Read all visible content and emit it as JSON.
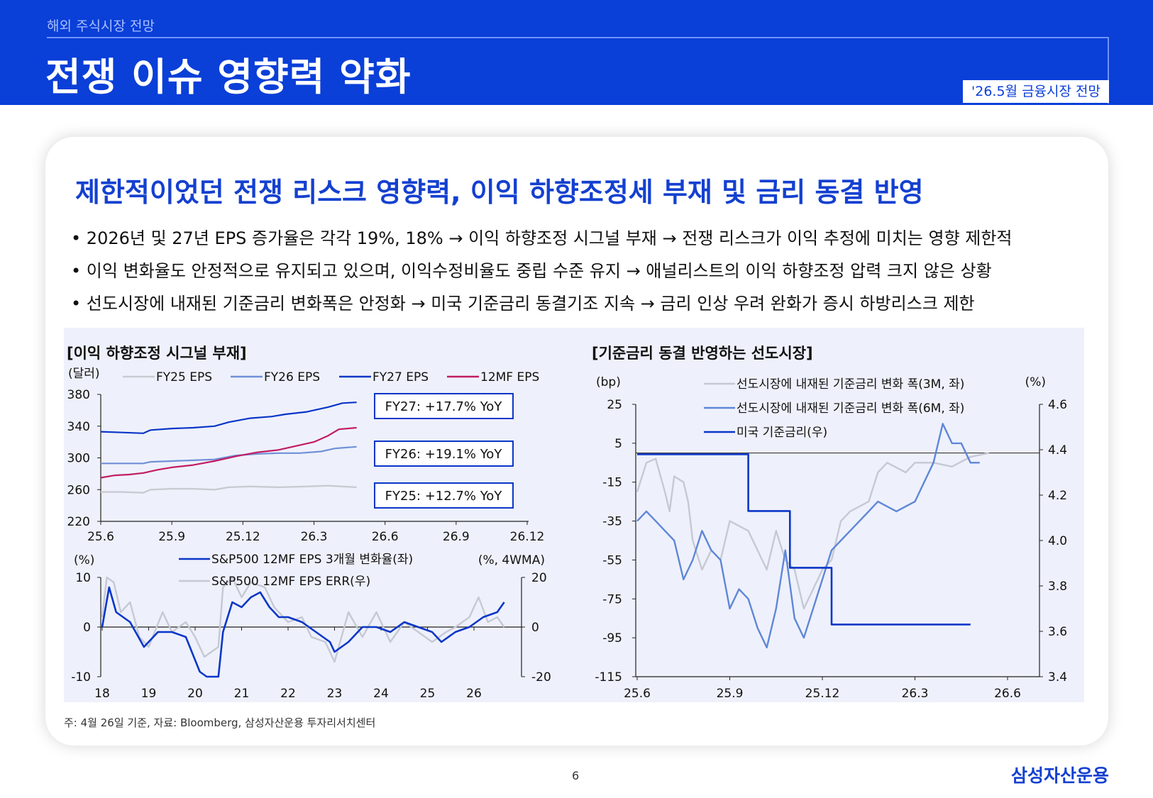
{
  "header": {
    "section": "해외 주식시장 전망",
    "title": "전쟁 이슈 영향력 약화",
    "badge": "'26.5월 금융시장 전망"
  },
  "card": {
    "title": "제한적이었던 전쟁 리스크 영향력, 이익 하향조정세 부재 및 금리 동결 반영",
    "bullets": [
      "2026년 및 27년 EPS 증가율은 각각 19%, 18% → 이익 하향조정 시그널 부재 → 전쟁 리스크가 이익 추정에 미치는 영향 제한적",
      "이익 변화율도 안정적으로 유지되고 있으며, 이익수정비율도 중립 수준 유지 → 애널리스트의 이익 하향조정 압력 크지 않은 상황",
      "선도시장에 내재된 기준금리 변화폭은 안정화 → 미국 기준금리 동결기조 지속 → 금리 인상 우려 완화가 증시 하방리스크 제한"
    ]
  },
  "colors": {
    "header_bg": "#0a3fd8",
    "accent": "#1440d0",
    "panel_bg": "#eef1fb",
    "fy25": "#c9cbd3",
    "fy26": "#6f90d8",
    "fy27": "#0a36c8",
    "mf12": "#c21c63",
    "err": "#c6c9d3",
    "chg3m": "#c6c9d3",
    "chg6m": "#5f86d8",
    "fed": "#0a36c8"
  },
  "chart_data": [
    {
      "type": "line",
      "title": "[이익 하향조정 시그널 부재]",
      "ylabel": "(달러)",
      "ylim": [
        220,
        380
      ],
      "yticks": [
        380,
        340,
        300,
        260,
        220
      ],
      "x_categories": [
        "25.6",
        "25.9",
        "25.12",
        "26.3",
        "26.6",
        "26.9",
        "26.12"
      ],
      "data_x_end": 3.6,
      "series": [
        {
          "name": "FY25 EPS",
          "key": "fy25",
          "values": [
            [
              0,
              257
            ],
            [
              0.3,
              257
            ],
            [
              0.6,
              256
            ],
            [
              0.7,
              260
            ],
            [
              1.0,
              261
            ],
            [
              1.3,
              261
            ],
            [
              1.6,
              260
            ],
            [
              1.8,
              263
            ],
            [
              2.1,
              264
            ],
            [
              2.5,
              263
            ],
            [
              2.9,
              264
            ],
            [
              3.2,
              265
            ],
            [
              3.4,
              264
            ],
            [
              3.6,
              263
            ]
          ]
        },
        {
          "name": "FY26 EPS",
          "key": "fy26",
          "values": [
            [
              0,
              293
            ],
            [
              0.3,
              293
            ],
            [
              0.6,
              293
            ],
            [
              0.7,
              295
            ],
            [
              1.0,
              296
            ],
            [
              1.3,
              297
            ],
            [
              1.6,
              298
            ],
            [
              1.9,
              303
            ],
            [
              2.2,
              305
            ],
            [
              2.5,
              306
            ],
            [
              2.8,
              306
            ],
            [
              3.1,
              308
            ],
            [
              3.3,
              312
            ],
            [
              3.6,
              314
            ]
          ]
        },
        {
          "name": "FY27 EPS",
          "key": "fy27",
          "values": [
            [
              0,
              333
            ],
            [
              0.3,
              332
            ],
            [
              0.6,
              331
            ],
            [
              0.7,
              335
            ],
            [
              1.0,
              337
            ],
            [
              1.3,
              338
            ],
            [
              1.6,
              340
            ],
            [
              1.8,
              345
            ],
            [
              2.1,
              350
            ],
            [
              2.4,
              352
            ],
            [
              2.6,
              355
            ],
            [
              2.9,
              358
            ],
            [
              3.2,
              364
            ],
            [
              3.4,
              369
            ],
            [
              3.6,
              370
            ]
          ]
        },
        {
          "name": "12MF EPS",
          "key": "mf12",
          "values": [
            [
              0,
              275
            ],
            [
              0.2,
              278
            ],
            [
              0.4,
              279
            ],
            [
              0.6,
              281
            ],
            [
              0.8,
              285
            ],
            [
              1.0,
              288
            ],
            [
              1.3,
              291
            ],
            [
              1.6,
              296
            ],
            [
              1.9,
              302
            ],
            [
              2.2,
              307
            ],
            [
              2.5,
              310
            ],
            [
              2.7,
              314
            ],
            [
              3.0,
              320
            ],
            [
              3.2,
              328
            ],
            [
              3.35,
              336
            ],
            [
              3.6,
              338
            ]
          ]
        }
      ],
      "annotations": [
        "FY27: +17.7% YoY",
        "FY26: +19.1% YoY",
        "FY25: +12.7% YoY"
      ]
    },
    {
      "type": "line",
      "ylabel_left": "(%)",
      "ylabel_right": "(%, 4WMA)",
      "ylim_left": [
        -10,
        10
      ],
      "ylim_right": [
        -20,
        20
      ],
      "yticks_left": [
        10,
        0,
        -10
      ],
      "yticks_right": [
        20,
        0,
        -20
      ],
      "x_categories": [
        "18",
        "19",
        "20",
        "21",
        "22",
        "23",
        "24",
        "25",
        "26"
      ],
      "series": [
        {
          "name": "S&P500 12MF EPS 3개월 변화율(좌)",
          "key": "fy27",
          "axis": "left",
          "values": [
            [
              0,
              0
            ],
            [
              0.15,
              8
            ],
            [
              0.3,
              3
            ],
            [
              0.6,
              1
            ],
            [
              0.9,
              -4
            ],
            [
              1.2,
              -1
            ],
            [
              1.5,
              -1
            ],
            [
              1.8,
              -2
            ],
            [
              2.1,
              -9
            ],
            [
              2.25,
              -10
            ],
            [
              2.5,
              -10
            ],
            [
              2.6,
              -1
            ],
            [
              2.8,
              5
            ],
            [
              3.0,
              4
            ],
            [
              3.2,
              6
            ],
            [
              3.4,
              7
            ],
            [
              3.6,
              4
            ],
            [
              3.8,
              2
            ],
            [
              4.0,
              2
            ],
            [
              4.3,
              1
            ],
            [
              4.6,
              -1
            ],
            [
              4.9,
              -3
            ],
            [
              5.0,
              -5
            ],
            [
              5.3,
              -3
            ],
            [
              5.6,
              0
            ],
            [
              5.9,
              0
            ],
            [
              6.2,
              -1
            ],
            [
              6.5,
              1
            ],
            [
              6.8,
              0
            ],
            [
              7.1,
              -1
            ],
            [
              7.3,
              -3
            ],
            [
              7.6,
              -1
            ],
            [
              7.9,
              0
            ],
            [
              8.2,
              2
            ],
            [
              8.5,
              3
            ],
            [
              8.65,
              5
            ]
          ]
        },
        {
          "name": "S&P500 12MF EPS ERR(우)",
          "key": "err",
          "axis": "right",
          "values": [
            [
              0,
              4
            ],
            [
              0.1,
              20
            ],
            [
              0.25,
              18
            ],
            [
              0.4,
              6
            ],
            [
              0.6,
              10
            ],
            [
              0.8,
              -4
            ],
            [
              1.0,
              -8
            ],
            [
              1.3,
              6
            ],
            [
              1.5,
              -2
            ],
            [
              1.8,
              2
            ],
            [
              2.0,
              -4
            ],
            [
              2.2,
              -12
            ],
            [
              2.5,
              -8
            ],
            [
              2.6,
              16
            ],
            [
              2.8,
              22
            ],
            [
              3.0,
              12
            ],
            [
              3.2,
              18
            ],
            [
              3.5,
              16
            ],
            [
              3.7,
              8
            ],
            [
              4.0,
              2
            ],
            [
              4.3,
              4
            ],
            [
              4.5,
              -4
            ],
            [
              4.8,
              -6
            ],
            [
              5.0,
              -14
            ],
            [
              5.3,
              6
            ],
            [
              5.6,
              -4
            ],
            [
              5.9,
              6
            ],
            [
              6.2,
              -6
            ],
            [
              6.5,
              2
            ],
            [
              6.8,
              -2
            ],
            [
              7.1,
              -6
            ],
            [
              7.4,
              -2
            ],
            [
              7.6,
              0
            ],
            [
              7.9,
              4
            ],
            [
              8.1,
              12
            ],
            [
              8.3,
              2
            ],
            [
              8.5,
              4
            ],
            [
              8.65,
              0
            ]
          ]
        }
      ]
    },
    {
      "type": "line",
      "title": "[기준금리 동결 반영하는 선도시장]",
      "ylabel_left": "(bp)",
      "ylabel_right": "(%)",
      "ylim_left": [
        -115,
        25
      ],
      "ylim_right": [
        3.4,
        4.6
      ],
      "yticks_left": [
        25,
        5,
        -15,
        -35,
        -55,
        -75,
        -95,
        -115
      ],
      "yticks_right": [
        4.6,
        4.4,
        4.2,
        4.0,
        3.8,
        3.6,
        3.4
      ],
      "x_categories": [
        "25.6",
        "25.9",
        "25.12",
        "26.3",
        "26.6"
      ],
      "series": [
        {
          "name": "선도시장에 내재된 기준금리 변화 폭(3M, 좌)",
          "key": "chg3m",
          "axis": "left",
          "values": [
            [
              0,
              -20
            ],
            [
              0.1,
              -5
            ],
            [
              0.2,
              -3
            ],
            [
              0.3,
              -20
            ],
            [
              0.35,
              -30
            ],
            [
              0.4,
              -12
            ],
            [
              0.5,
              -15
            ],
            [
              0.55,
              -25
            ],
            [
              0.6,
              -45
            ],
            [
              0.7,
              -60
            ],
            [
              0.8,
              -50
            ],
            [
              0.9,
              -55
            ],
            [
              1.0,
              -35
            ],
            [
              1.2,
              -40
            ],
            [
              1.4,
              -60
            ],
            [
              1.5,
              -40
            ],
            [
              1.6,
              -55
            ],
            [
              1.7,
              -60
            ],
            [
              1.8,
              -80
            ],
            [
              1.9,
              -70
            ],
            [
              2.0,
              -60
            ],
            [
              2.1,
              -55
            ],
            [
              2.2,
              -35
            ],
            [
              2.3,
              -30
            ],
            [
              2.5,
              -25
            ],
            [
              2.6,
              -10
            ],
            [
              2.7,
              -5
            ],
            [
              2.9,
              -10
            ],
            [
              3.0,
              -5
            ],
            [
              3.2,
              -5
            ],
            [
              3.4,
              -7
            ],
            [
              3.6,
              -2
            ],
            [
              3.8,
              0
            ]
          ]
        },
        {
          "name": "선도시장에 내재된 기준금리 변화 폭(6M, 좌)",
          "key": "chg6m",
          "axis": "left",
          "values": [
            [
              0,
              -35
            ],
            [
              0.1,
              -30
            ],
            [
              0.2,
              -35
            ],
            [
              0.3,
              -40
            ],
            [
              0.4,
              -45
            ],
            [
              0.5,
              -65
            ],
            [
              0.6,
              -55
            ],
            [
              0.7,
              -40
            ],
            [
              0.8,
              -50
            ],
            [
              0.9,
              -55
            ],
            [
              1.0,
              -80
            ],
            [
              1.1,
              -70
            ],
            [
              1.2,
              -75
            ],
            [
              1.3,
              -90
            ],
            [
              1.4,
              -100
            ],
            [
              1.5,
              -80
            ],
            [
              1.6,
              -50
            ],
            [
              1.7,
              -85
            ],
            [
              1.8,
              -95
            ],
            [
              1.9,
              -80
            ],
            [
              2.0,
              -65
            ],
            [
              2.1,
              -50
            ],
            [
              2.2,
              -45
            ],
            [
              2.3,
              -40
            ],
            [
              2.5,
              -30
            ],
            [
              2.6,
              -25
            ],
            [
              2.8,
              -30
            ],
            [
              3.0,
              -25
            ],
            [
              3.1,
              -15
            ],
            [
              3.2,
              -5
            ],
            [
              3.3,
              15
            ],
            [
              3.4,
              5
            ],
            [
              3.5,
              5
            ],
            [
              3.6,
              -5
            ],
            [
              3.7,
              -5
            ]
          ]
        },
        {
          "name": "미국 기준금리(우)",
          "key": "fed",
          "axis": "right",
          "values": [
            [
              0,
              4.38
            ],
            [
              1.2,
              4.38
            ],
            [
              1.2,
              4.13
            ],
            [
              1.65,
              4.13
            ],
            [
              1.65,
              3.88
            ],
            [
              2.1,
              3.88
            ],
            [
              2.1,
              3.63
            ],
            [
              3.6,
              3.63
            ]
          ]
        }
      ]
    }
  ],
  "footer": {
    "note": "주: 4월 26일 기준, 자료: Bloomberg, 삼성자산운용 투자리서치센터",
    "page": "6",
    "logo": "삼성자산운용"
  }
}
